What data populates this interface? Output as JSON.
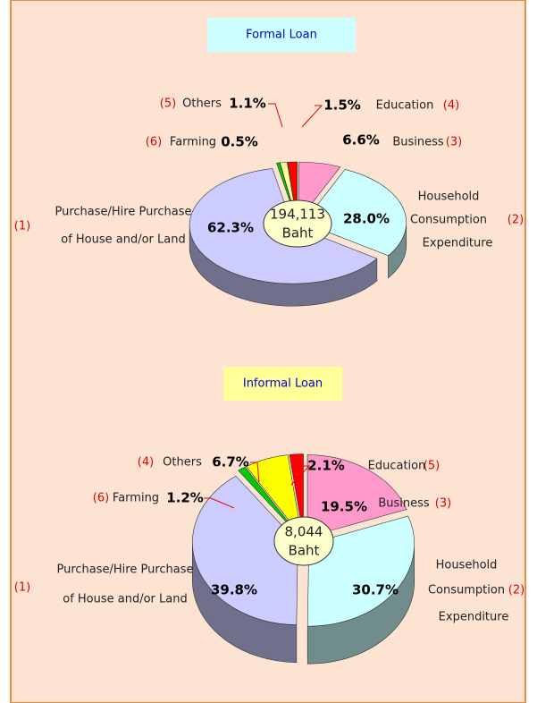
{
  "chart_data": [
    {
      "type": "pie",
      "title": "Formal Loan",
      "center_label": "194,113",
      "center_unit": "Baht",
      "codes": [
        "(3)",
        "(2)",
        "(1)",
        "(6)",
        "(5)",
        "(4)"
      ],
      "categories": [
        [
          "Business"
        ],
        [
          "Household",
          "Consumption",
          "Expenditure"
        ],
        [
          "Purchase/Hire Purchase",
          "of House and/or Land"
        ],
        [
          "Farming"
        ],
        [
          "Others"
        ],
        [
          "Education"
        ]
      ],
      "values": [
        6.6,
        28.0,
        62.3,
        0.5,
        1.1,
        1.5
      ],
      "value_labels": [
        "6.6%",
        "28.0%",
        "62.3%",
        "0.5%",
        "1.1%",
        "1.5%"
      ],
      "colors": [
        "#ff99cc",
        "#ccffff",
        "#ccccff",
        "#00cc00",
        "#ffff99",
        "#ff0000"
      ]
    },
    {
      "type": "pie",
      "title": "Informal Loan",
      "center_label": "8,044",
      "center_unit": "Baht",
      "codes": [
        "(3)",
        "(2)",
        "(1)",
        "(6)",
        "(4)",
        "(5)"
      ],
      "categories": [
        [
          "Business"
        ],
        [
          "Household",
          "Consumption",
          "Expenditure"
        ],
        [
          "Purchase/Hire Purchase",
          "of House and/or Land"
        ],
        [
          "Farming"
        ],
        [
          "Others"
        ],
        [
          "Education"
        ]
      ],
      "values": [
        19.5,
        30.7,
        39.8,
        1.2,
        6.7,
        2.1
      ],
      "value_labels": [
        "19.5%",
        "30.7%",
        "39.8%",
        "1.2%",
        "6.7%",
        "2.1%"
      ],
      "colors": [
        "#ff99cc",
        "#ccffff",
        "#ccccff",
        "#00cc00",
        "#ffff00",
        "#ff0000"
      ]
    }
  ]
}
